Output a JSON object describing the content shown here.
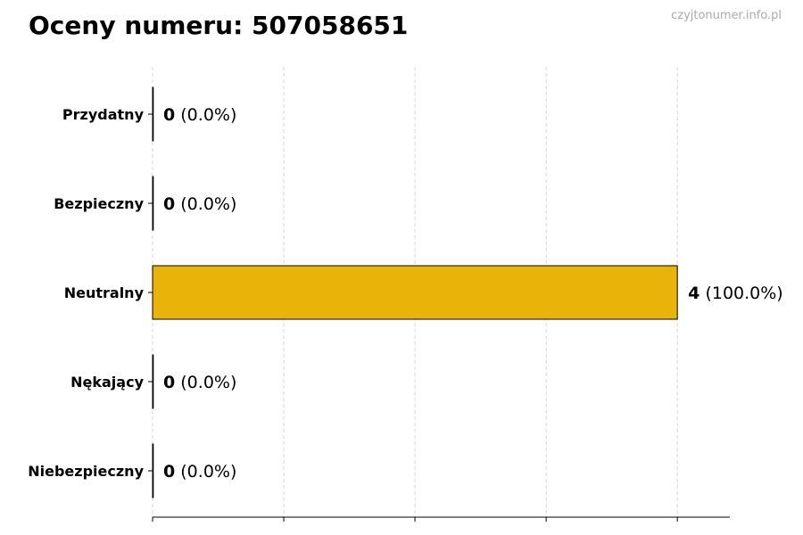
{
  "chart_data": {
    "type": "bar",
    "orientation": "horizontal",
    "title": "Oceny numeru: 507058651",
    "watermark": "czyjtonumer.info.pl",
    "categories": [
      "Przydatny",
      "Bezpieczny",
      "Neutralny",
      "Nękający",
      "Niebezpieczny"
    ],
    "values": [
      0,
      0,
      4,
      0,
      0
    ],
    "labels": [
      {
        "count": "0",
        "pct": "(0.0%)"
      },
      {
        "count": "0",
        "pct": "(0.0%)"
      },
      {
        "count": "4",
        "pct": "(100.0%)"
      },
      {
        "count": "0",
        "pct": "(0.0%)"
      },
      {
        "count": "0",
        "pct": "(0.0%)"
      }
    ],
    "xlim": [
      0,
      4.4
    ],
    "xticks": [
      0,
      1,
      2,
      3,
      4
    ],
    "xtick_labels_shown": false,
    "grid": "vertical dashed",
    "bar_color": "#E8B40A",
    "xlabel": "",
    "ylabel": ""
  }
}
